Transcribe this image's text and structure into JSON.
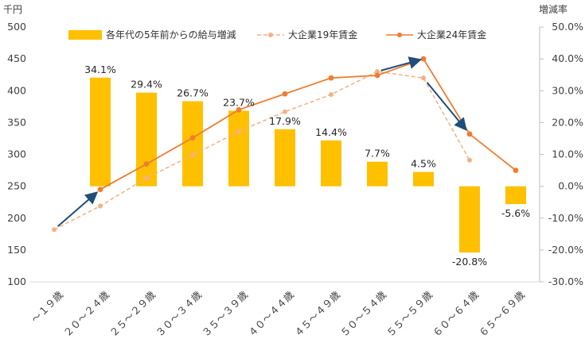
{
  "chart_data": {
    "type": "bar+line",
    "title": "",
    "left_axis": {
      "unit_label": "千円",
      "ylim": [
        100,
        500
      ],
      "ticks": [
        100,
        150,
        200,
        250,
        300,
        350,
        400,
        450,
        500
      ]
    },
    "right_axis": {
      "unit_label": "増減率",
      "ylim": [
        -30,
        50
      ],
      "ticks": [
        "-30.0%",
        "-20.0%",
        "-10.0%",
        "0.0%",
        "10.0%",
        "20.0%",
        "30.0%",
        "40.0%",
        "50.0%"
      ]
    },
    "categories": [
      "～１９歳",
      "２０～２４歳",
      "２５～２９歳",
      "３０～３４歳",
      "３５～３９歳",
      "４０～４４歳",
      "４５～４９歳",
      "５０～５４歳",
      "５５～５９歳",
      "６０～６４歳",
      "６５～６９歳"
    ],
    "series": [
      {
        "name": "各年代の5年前からの給与増減",
        "type": "bar",
        "axis": "right",
        "color": "#FFC000",
        "values": [
          null,
          34.1,
          29.4,
          26.7,
          23.7,
          17.9,
          14.4,
          7.7,
          4.5,
          -20.8,
          -5.6
        ],
        "labels": [
          "",
          "34.1%",
          "29.4%",
          "26.7%",
          "23.7%",
          "17.9%",
          "14.4%",
          "7.7%",
          "4.5%",
          "-20.8%",
          "-5.6%"
        ]
      },
      {
        "name": "大企業19年賃金",
        "type": "line",
        "style": "dashed",
        "axis": "left",
        "color": "#F4B183",
        "values": [
          182,
          219,
          263,
          299,
          336,
          367,
          394,
          430,
          420,
          291,
          null
        ]
      },
      {
        "name": "大企業24年賃金",
        "type": "line",
        "style": "solid",
        "axis": "left",
        "color": "#ED7D31",
        "values": [
          null,
          245,
          285,
          326,
          370,
          395,
          420,
          424,
          450,
          332,
          275
        ]
      }
    ],
    "arrows_color": "#1F4E79",
    "legend_position": "top",
    "grid": false
  }
}
